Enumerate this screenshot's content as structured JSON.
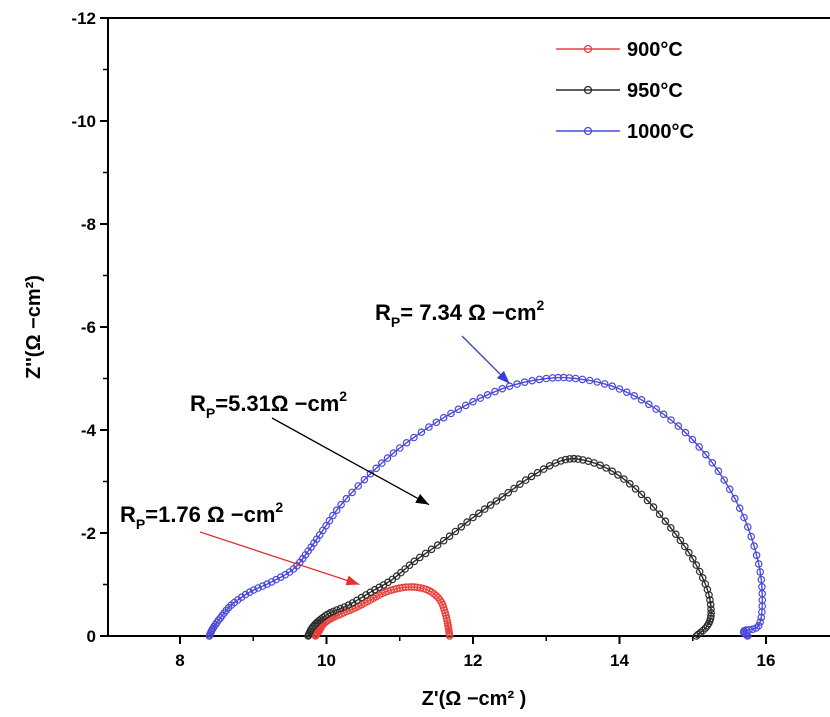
{
  "chart_data": {
    "type": "scatter",
    "xlabel": "Z'(Ω −cm² )",
    "ylabel": "Z''(Ω −cm²)",
    "xlim": [
      7,
      18
    ],
    "ylim": [
      0,
      -12
    ],
    "x_ticks": [
      "8",
      "10",
      "12",
      "14",
      "16"
    ],
    "y_ticks": [
      "0",
      "-2",
      "-4",
      "-6",
      "-8",
      "-10",
      "-12"
    ],
    "legend_position": "top-right",
    "grid": false,
    "series": [
      {
        "name": "900°C",
        "color": "#e8403a",
        "points": [
          [
            9.85,
            0
          ],
          [
            9.9,
            -0.1
          ],
          [
            9.95,
            -0.22
          ],
          [
            10.05,
            -0.33
          ],
          [
            10.2,
            -0.43
          ],
          [
            10.4,
            -0.55
          ],
          [
            10.6,
            -0.7
          ],
          [
            10.8,
            -0.85
          ],
          [
            11.0,
            -0.93
          ],
          [
            11.2,
            -0.95
          ],
          [
            11.4,
            -0.88
          ],
          [
            11.55,
            -0.7
          ],
          [
            11.62,
            -0.45
          ],
          [
            11.66,
            -0.2
          ],
          [
            11.68,
            0
          ]
        ]
      },
      {
        "name": "950°C",
        "color": "#2b2b2b",
        "points": [
          [
            9.75,
            0
          ],
          [
            9.8,
            -0.15
          ],
          [
            9.9,
            -0.3
          ],
          [
            10.05,
            -0.45
          ],
          [
            10.3,
            -0.6
          ],
          [
            10.6,
            -0.85
          ],
          [
            10.9,
            -1.1
          ],
          [
            11.2,
            -1.45
          ],
          [
            11.6,
            -1.85
          ],
          [
            12.0,
            -2.3
          ],
          [
            12.4,
            -2.7
          ],
          [
            12.8,
            -3.1
          ],
          [
            13.2,
            -3.4
          ],
          [
            13.5,
            -3.42
          ],
          [
            13.9,
            -3.2
          ],
          [
            14.3,
            -2.75
          ],
          [
            14.7,
            -2.1
          ],
          [
            15.0,
            -1.5
          ],
          [
            15.2,
            -0.9
          ],
          [
            15.25,
            -0.45
          ],
          [
            15.2,
            -0.2
          ],
          [
            15.05,
            0
          ]
        ]
      },
      {
        "name": "1000°C",
        "color": "#4a4ad8",
        "points": [
          [
            8.4,
            0
          ],
          [
            8.45,
            -0.15
          ],
          [
            8.55,
            -0.35
          ],
          [
            8.7,
            -0.6
          ],
          [
            8.95,
            -0.85
          ],
          [
            9.25,
            -1.05
          ],
          [
            9.55,
            -1.3
          ],
          [
            9.75,
            -1.65
          ],
          [
            9.95,
            -2.05
          ],
          [
            10.2,
            -2.55
          ],
          [
            10.6,
            -3.15
          ],
          [
            11.0,
            -3.65
          ],
          [
            11.5,
            -4.15
          ],
          [
            12.0,
            -4.55
          ],
          [
            12.5,
            -4.85
          ],
          [
            13.0,
            -5.0
          ],
          [
            13.4,
            -5.0
          ],
          [
            13.9,
            -4.85
          ],
          [
            14.4,
            -4.5
          ],
          [
            14.9,
            -3.95
          ],
          [
            15.35,
            -3.2
          ],
          [
            15.7,
            -2.3
          ],
          [
            15.9,
            -1.4
          ],
          [
            15.95,
            -0.7
          ],
          [
            15.9,
            -0.2
          ],
          [
            15.7,
            -0.1
          ],
          [
            15.75,
            0
          ]
        ]
      }
    ],
    "annotations": [
      {
        "label": "R",
        "subscript": "P",
        "text": "= 7.34 Ω −cm",
        "superscript": "2",
        "color": "#3a3ad8",
        "arrow_to": [
          12.5,
          -4.9
        ]
      },
      {
        "label": "R",
        "subscript": "P",
        "text": "=5.31Ω −cm",
        "superscript": "2",
        "color": "#000000",
        "arrow_to": [
          11.4,
          -2.55
        ]
      },
      {
        "label": "R",
        "subscript": "P",
        "text": "=1.76 Ω −cm",
        "superscript": "2",
        "color": "#e03030",
        "arrow_to": [
          10.45,
          -1.0
        ]
      }
    ]
  }
}
